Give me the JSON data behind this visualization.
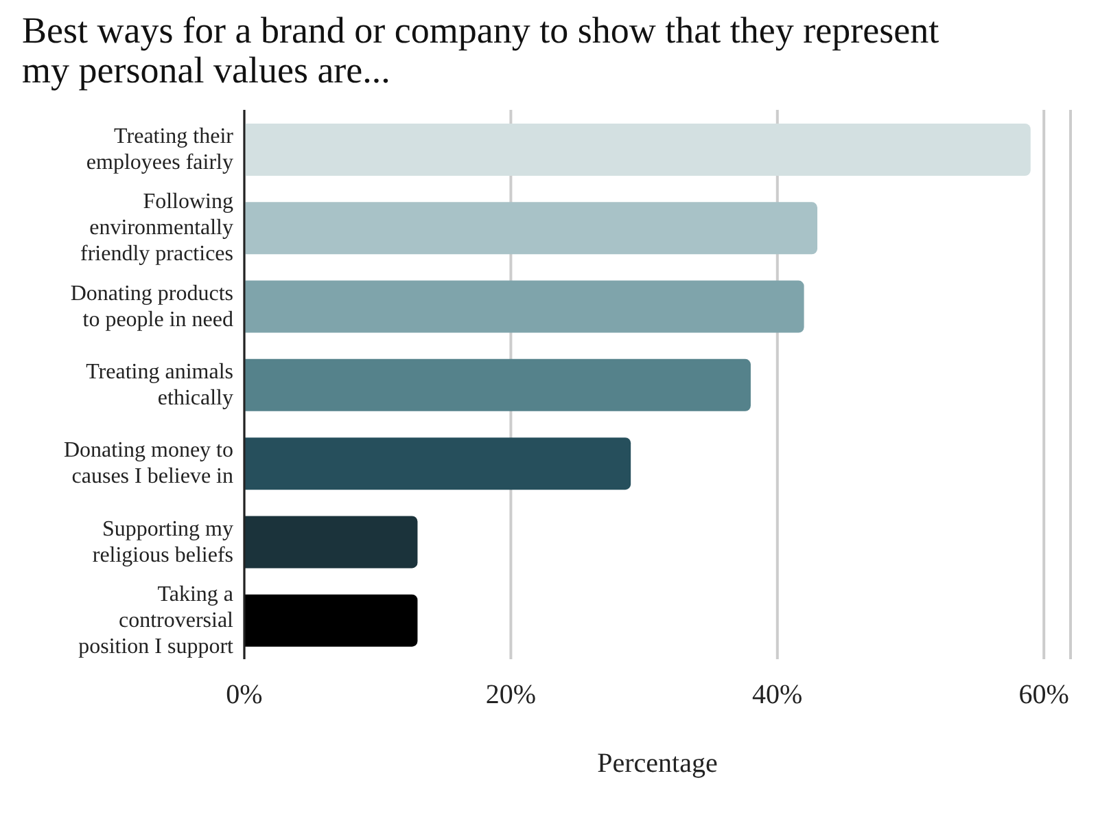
{
  "chart_data": {
    "type": "bar",
    "orientation": "horizontal",
    "title": "Best ways for a brand or company to show that they represent my personal values are...",
    "xlabel": "Percentage",
    "categories": [
      "Treating their employees fairly",
      "Following environmentally friendly practices",
      "Donating products to people in need",
      "Treating animals ethically",
      "Donating money to causes I believe in",
      "Supporting my religious beliefs",
      "Taking a controversial position I support"
    ],
    "values": [
      59,
      43,
      42,
      38,
      29,
      13,
      13
    ],
    "colors": [
      "#d3e0e1",
      "#a8c2c7",
      "#7fa4ab",
      "#55828b",
      "#264f5c",
      "#1b333b",
      "#000000"
    ],
    "xlim": [
      0,
      62
    ],
    "xticks": [
      {
        "value": 0,
        "label": "0%"
      },
      {
        "value": 20,
        "label": "20%"
      },
      {
        "value": 40,
        "label": "40%"
      },
      {
        "value": 60,
        "label": "60%"
      }
    ],
    "grid": "x",
    "legend": false
  }
}
